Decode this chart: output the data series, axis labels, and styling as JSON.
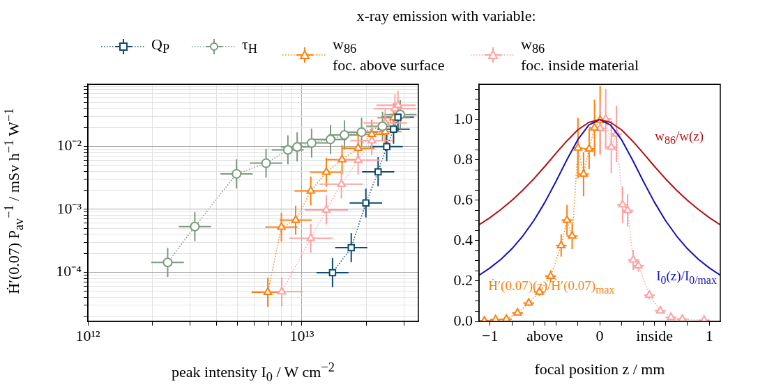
{
  "chart_data": [
    {
      "type": "line",
      "legend_title": "x-ray emission with variable:",
      "legend": "top",
      "log": "xy",
      "grid": true,
      "xlabel": "peak intensity I$_{0}$ /  W cm$^{−2}$",
      "ylabel": "Ḣ′(0.07) P$_{av}$$^{−1}$ / mSv h$^{−1}$ W$^{−1}$",
      "xlim": [
        1000000000000.0,
        35000000000000.0
      ],
      "ylim": [
        1.65e-05,
        0.097
      ],
      "xticks": [
        {
          "value": 1000000000000.0,
          "label": "10¹²"
        },
        {
          "value": 2000000000000.0,
          "label": null
        },
        {
          "value": 3000000000000.0,
          "label": null
        },
        {
          "value": 4000000000000.0,
          "label": null
        },
        {
          "value": 5000000000000.0,
          "label": null
        },
        {
          "value": 6000000000000.0,
          "label": null
        },
        {
          "value": 7000000000000.0,
          "label": null
        },
        {
          "value": 8000000000000.0,
          "label": null
        },
        {
          "value": 9000000000000.0,
          "label": null
        },
        {
          "value": 10000000000000.0,
          "label": "10¹³"
        },
        {
          "value": 20000000000000.0,
          "label": null
        },
        {
          "value": 30000000000000.0,
          "label": null
        }
      ],
      "yticks": [
        {
          "value": 2e-05,
          "label": null
        },
        {
          "value": 3e-05,
          "label": null
        },
        {
          "value": 4e-05,
          "label": null
        },
        {
          "value": 5e-05,
          "label": null
        },
        {
          "value": 6e-05,
          "label": null
        },
        {
          "value": 7e-05,
          "label": null
        },
        {
          "value": 8e-05,
          "label": null
        },
        {
          "value": 9e-05,
          "label": null
        },
        {
          "value": 0.0001,
          "label": "10⁻⁴"
        },
        {
          "value": 0.0002,
          "label": null
        },
        {
          "value": 0.0003,
          "label": null
        },
        {
          "value": 0.0004,
          "label": null
        },
        {
          "value": 0.0005,
          "label": null
        },
        {
          "value": 0.0006,
          "label": null
        },
        {
          "value": 0.0007,
          "label": null
        },
        {
          "value": 0.0008,
          "label": null
        },
        {
          "value": 0.0009,
          "label": null
        },
        {
          "value": 0.001,
          "label": "10⁻³"
        },
        {
          "value": 0.002,
          "label": null
        },
        {
          "value": 0.003,
          "label": null
        },
        {
          "value": 0.004,
          "label": null
        },
        {
          "value": 0.005,
          "label": null
        },
        {
          "value": 0.006,
          "label": null
        },
        {
          "value": 0.007,
          "label": null
        },
        {
          "value": 0.008,
          "label": null
        },
        {
          "value": 0.009,
          "label": null
        },
        {
          "value": 0.01,
          "label": "10⁻²"
        },
        {
          "value": 0.02,
          "label": null
        },
        {
          "value": 0.03,
          "label": null
        },
        {
          "value": 0.04,
          "label": null
        },
        {
          "value": 0.05,
          "label": null
        },
        {
          "value": 0.06,
          "label": null
        },
        {
          "value": 0.07,
          "label": null
        },
        {
          "value": 0.08,
          "label": null
        },
        {
          "value": 0.09,
          "label": null
        }
      ],
      "series": [
        {
          "name": "Q$_{P}$",
          "color": "#0e4a6e",
          "marker": "square",
          "line_style": "dotted",
          "x": [
            13900000000000.0,
            17000000000000.0,
            19900000000000.0,
            22700000000000.0,
            24900000000000.0,
            26800000000000.0,
            28100000000000.0
          ],
          "values": [
            9.8e-05,
            0.000245,
            0.00126,
            0.00395,
            0.0099,
            0.0187,
            0.029
          ],
          "xerrors": [
            [
              11700000000000.0,
              16500000000000.0
            ],
            [
              14300000000000.0,
              20200000000000.0
            ],
            [
              16700000000000.0,
              23700000000000.0
            ],
            [
              19100000000000.0,
              27000000000000.0
            ],
            [
              20900000000000.0,
              29600000000000.0
            ],
            [
              22500000000000.0,
              31900000000000.0
            ],
            [
              23600000000000.0,
              33400000000000.0
            ]
          ],
          "errors": [
            [
              5.76e-05,
              0.000167
            ],
            [
              0.000144,
              0.000417
            ],
            [
              0.000741,
              0.00214
            ],
            [
              0.00232,
              0.00672
            ],
            [
              0.00582,
              0.0168
            ],
            [
              0.011,
              0.0318
            ],
            [
              0.0171,
              0.0493
            ]
          ]
        },
        {
          "name": "τ$_{H}$",
          "color": "#7a9a80",
          "marker": "circle",
          "line_style": "dotted",
          "x": [
            2360000000000.0,
            3160000000000.0,
            4950000000000.0,
            6800000000000.0,
            8600000000000.0,
            9500000000000.0,
            11100000000000.0,
            13600000000000.0,
            15800000000000.0,
            19000000000000.0,
            23800000000000.0,
            28800000000000.0
          ],
          "values": [
            0.000143,
            0.00053,
            0.00366,
            0.0054,
            0.0088,
            0.0098,
            0.0113,
            0.0129,
            0.0152,
            0.0168,
            0.0209,
            0.032
          ],
          "xerrors": [
            [
              1980000000000.0,
              2810000000000.0
            ],
            [
              2660000000000.0,
              3760000000000.0
            ],
            [
              4160000000000.0,
              5890000000000.0
            ],
            [
              5710000000000.0,
              8090000000000.0
            ],
            [
              7230000000000.0,
              10200000000000.0
            ],
            [
              7980000000000.0,
              11300000000000.0
            ],
            [
              9330000000000.0,
              13200000000000.0
            ],
            [
              11400000000000.0,
              16200000000000.0
            ],
            [
              13300000000000.0,
              18800000000000.0
            ],
            [
              16000000000000.0,
              22600000000000.0
            ],
            [
              20000000000000.0,
              28300000000000.0
            ],
            [
              24200000000000.0,
              34300000000000.0
            ]
          ],
          "errors": [
            [
              8.4e-05,
              0.000243
            ],
            [
              0.000312,
              0.0009
            ],
            [
              0.00215,
              0.00622
            ],
            [
              0.00318,
              0.00918
            ],
            [
              0.00518,
              0.015
            ],
            [
              0.00576,
              0.0167
            ],
            [
              0.00665,
              0.0192
            ],
            [
              0.00759,
              0.0219
            ],
            [
              0.00894,
              0.0258
            ],
            [
              0.00988,
              0.0286
            ],
            [
              0.0123,
              0.0355
            ],
            [
              0.0188,
              0.0544
            ]
          ]
        },
        {
          "name": "w$_{86}$\nfoc. above surface",
          "color": "#ff7f0e",
          "marker": "triangle",
          "line_style": "dotted",
          "x": [
            6930000000000.0,
            8020000000000.0,
            9350000000000.0,
            11000000000000.0,
            13000000000000.0,
            15400000000000.0,
            18300000000000.0,
            21200000000000.0,
            24500000000000.0,
            26800000000000.0
          ],
          "values": [
            4.8e-05,
            0.00052,
            0.00067,
            0.00195,
            0.00388,
            0.00615,
            0.00935,
            0.0156,
            0.0171,
            0.0285
          ],
          "xerrors": [
            [
              5820000000000.0,
              8250000000000.0
            ],
            [
              6740000000000.0,
              9540000000000.0
            ],
            [
              7860000000000.0,
              11100000000000.0
            ],
            [
              9240000000000.0,
              13100000000000.0
            ],
            [
              10900000000000.0,
              15500000000000.0
            ],
            [
              12900000000000.0,
              18300000000000.0
            ],
            [
              15400000000000.0,
              21800000000000.0
            ],
            [
              17800000000000.0,
              25200000000000.0
            ],
            [
              20600000000000.0,
              29200000000000.0
            ],
            [
              22500000000000.0,
              31900000000000.0
            ]
          ],
          "errors": [
            [
              2.82e-05,
              8.16e-05
            ],
            [
              0.000306,
              0.000884
            ],
            [
              0.000394,
              0.00114
            ],
            [
              0.00115,
              0.00332
            ],
            [
              0.00228,
              0.0066
            ],
            [
              0.00362,
              0.0105
            ],
            [
              0.0055,
              0.0159
            ],
            [
              0.00918,
              0.0265
            ],
            [
              0.0101,
              0.0291
            ],
            [
              0.0168,
              0.0485
            ]
          ]
        },
        {
          "name": "w$_{86}$\nfoc. inside material",
          "color": "#ffa0a0",
          "marker": "triangle",
          "line_style": "dotted",
          "x": [
            8050000000000.0,
            11000000000000.0,
            13000000000000.0,
            15300000000000.0,
            18300000000000.0,
            21200000000000.0,
            24500000000000.0,
            27200000000000.0,
            28100000000000.0
          ],
          "values": [
            4.9e-05,
            0.000345,
            0.000975,
            0.00251,
            0.00605,
            0.0123,
            0.0235,
            0.0398,
            0.045
          ],
          "xerrors": [
            [
              6390000000000.0,
              10100000000000.0
            ],
            [
              8730000000000.0,
              13900000000000.0
            ],
            [
              10300000000000.0,
              16400000000000.0
            ],
            [
              12100000000000.0,
              19300000000000.0
            ],
            [
              14500000000000.0,
              23100000000000.0
            ],
            [
              16800000000000.0,
              26700000000000.0
            ],
            [
              19400000000000.0,
              30900000000000.0
            ],
            [
              21600000000000.0,
              34300000000000.0
            ],
            [
              22300000000000.0,
              34000000000000.0
            ]
          ],
          "errors": [
            [
              2.88e-05,
              8.33e-05
            ],
            [
              0.000203,
              0.000587
            ],
            [
              0.000574,
              0.00166
            ],
            [
              0.00148,
              0.00427
            ],
            [
              0.00356,
              0.0103
            ],
            [
              0.00724,
              0.0209
            ],
            [
              0.0138,
              0.04
            ],
            [
              0.0234,
              0.0677
            ],
            [
              0.0265,
              0.0765
            ]
          ]
        }
      ]
    },
    {
      "type": "line",
      "xlabel": "focal position z / mm",
      "xlim": [
        -1.1,
        1.1
      ],
      "ylim": [
        0,
        1.175
      ],
      "xticks": [
        {
          "value": -1,
          "label": "−1"
        },
        {
          "value": -0.8,
          "label": null
        },
        {
          "value": -0.6,
          "label": null
        },
        {
          "value": -0.5,
          "label": "above"
        },
        {
          "value": -0.4,
          "label": null
        },
        {
          "value": -0.2,
          "label": null
        },
        {
          "value": 0,
          "label": "0"
        },
        {
          "value": 0.2,
          "label": null
        },
        {
          "value": 0.4,
          "label": null
        },
        {
          "value": 0.5,
          "label": "inside"
        },
        {
          "value": 0.6,
          "label": null
        },
        {
          "value": 0.8,
          "label": null
        },
        {
          "value": 1,
          "label": "1"
        }
      ],
      "yticks": [
        {
          "value": 0,
          "label": "0.0"
        },
        {
          "value": 0.05,
          "label": null
        },
        {
          "value": 0.1,
          "label": null
        },
        {
          "value": 0.15,
          "label": null
        },
        {
          "value": 0.2,
          "label": "0.2"
        },
        {
          "value": 0.25,
          "label": null
        },
        {
          "value": 0.3,
          "label": null
        },
        {
          "value": 0.35,
          "label": null
        },
        {
          "value": 0.4,
          "label": "0.4"
        },
        {
          "value": 0.45,
          "label": null
        },
        {
          "value": 0.5,
          "label": null
        },
        {
          "value": 0.55,
          "label": null
        },
        {
          "value": 0.6,
          "label": "0.6"
        },
        {
          "value": 0.65,
          "label": null
        },
        {
          "value": 0.7,
          "label": null
        },
        {
          "value": 0.75,
          "label": null
        },
        {
          "value": 0.8,
          "label": "0.8"
        },
        {
          "value": 0.85,
          "label": null
        },
        {
          "value": 0.9,
          "label": null
        },
        {
          "value": 0.95,
          "label": null
        },
        {
          "value": 1,
          "label": "1.0"
        },
        {
          "value": 1.05,
          "label": null
        },
        {
          "value": 1.1,
          "label": null
        },
        {
          "value": 1.15,
          "label": null
        }
      ],
      "series": [
        {
          "name": "w$_{86}$/w(z)",
          "color": "#b01010",
          "marker": "none",
          "line_style": "solid",
          "x": [
            -1.1,
            -1,
            -0.9,
            -0.8,
            -0.7,
            -0.6,
            -0.5,
            -0.4,
            -0.3,
            -0.2,
            -0.1,
            0,
            0.1,
            0.2,
            0.3,
            0.4,
            0.5,
            0.6,
            0.7,
            0.8,
            0.9,
            1,
            1.1
          ],
          "values": [
            0.479,
            0.514,
            0.555,
            0.6,
            0.651,
            0.707,
            0.768,
            0.832,
            0.894,
            0.949,
            0.986,
            1,
            0.986,
            0.949,
            0.894,
            0.832,
            0.768,
            0.707,
            0.651,
            0.6,
            0.555,
            0.514,
            0.479
          ]
        },
        {
          "name": "I$_{0}$(z)/I$_{0/max}$",
          "color": "#1010c0",
          "marker": "none",
          "line_style": "solid",
          "x": [
            -1.1,
            -1,
            -0.9,
            -0.8,
            -0.7,
            -0.6,
            -0.5,
            -0.4,
            -0.3,
            -0.2,
            -0.1,
            0,
            0.1,
            0.2,
            0.3,
            0.4,
            0.5,
            0.6,
            0.7,
            0.8,
            0.9,
            1,
            1.1
          ],
          "values": [
            0.229,
            0.265,
            0.308,
            0.36,
            0.424,
            0.5,
            0.59,
            0.692,
            0.8,
            0.9,
            0.973,
            1,
            0.973,
            0.9,
            0.8,
            0.692,
            0.59,
            0.5,
            0.424,
            0.36,
            0.308,
            0.265,
            0.229
          ]
        },
        {
          "name": "Ḣ′(0.07)(z)/Ḣ′(0.07)$_{max}$",
          "color": "#ff7f0e",
          "marker": "triangle",
          "line_style": "dotted",
          "x": [
            -1.051,
            -0.949,
            -0.851,
            -0.749,
            -0.647,
            -0.549,
            -0.447,
            -0.351,
            -0.298,
            -0.251,
            -0.198,
            -0.147,
            -0.096,
            -0.047,
            0.004
          ],
          "values": [
            0.003,
            0.009,
            0.011,
            0.042,
            0.091,
            0.146,
            0.224,
            0.376,
            0.502,
            0.423,
            0.859,
            0.73,
            0.855,
            0.959,
            0.997
          ],
          "xerrors": [
            0.05,
            0.05,
            0.05,
            0.05,
            0.05,
            0.05,
            0.05,
            0.05,
            0.05,
            0.05,
            0.05,
            0.05,
            0.05,
            0.05,
            0.05
          ],
          "errors": [
            null,
            null,
            null,
            0.01,
            0.015,
            0.02,
            0.03,
            0.055,
            0.075,
            0.065,
            0.15,
            0.11,
            0.1,
            0.14,
            0.17
          ]
        },
        {
          "color": "#ffa0a0",
          "marker": "triangle",
          "line_style": "dotted",
          "x": [
            0.004,
            0.055,
            0.106,
            0.153,
            0.209,
            0.255,
            0.306,
            0.353,
            0.453,
            0.553,
            0.651,
            0.753,
            0.953
          ],
          "values": [
            0.957,
            1.003,
            0.864,
            0.929,
            0.578,
            0.55,
            0.305,
            0.276,
            0.13,
            0.053,
            0.02,
            0.011,
            0.006
          ],
          "xerrors": [
            0.05,
            0.05,
            0.05,
            0.05,
            0.05,
            0.05,
            0.05,
            0.05,
            0.05,
            0.05,
            0.05,
            0.05,
            0.05
          ],
          "errors": [
            0.13,
            0.15,
            0.13,
            0.14,
            0.09,
            0.08,
            0.05,
            0.03,
            0.02,
            0.01,
            null,
            null,
            null
          ]
        }
      ]
    }
  ]
}
